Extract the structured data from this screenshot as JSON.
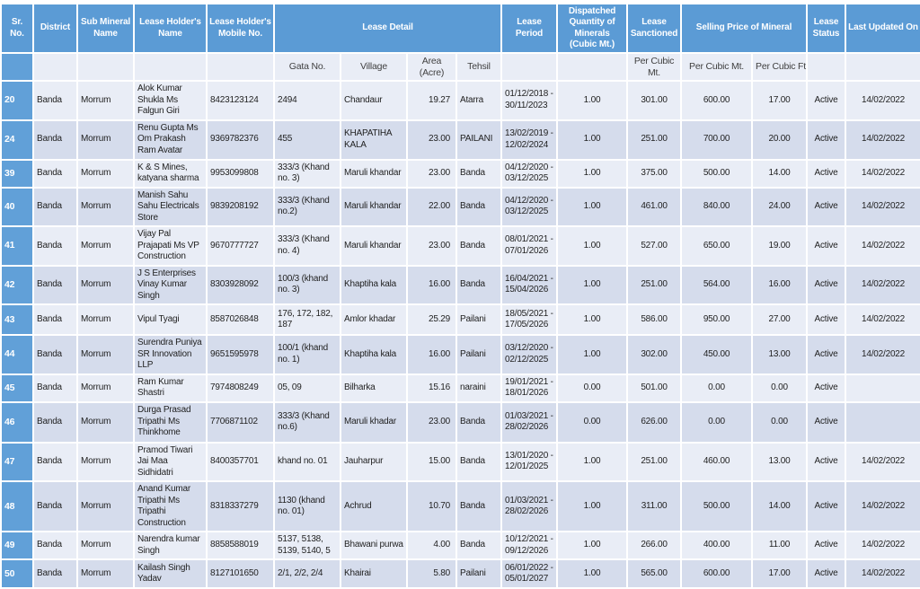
{
  "colors": {
    "header_bg": "#5B9BD5",
    "header_text": "#FFFFFF",
    "subheader_bg": "#D8E1F1",
    "subheader_text": "#404040",
    "row_light": "#E9EDF6",
    "row_dark": "#D5DCEC",
    "srcol_bg": "#61A0D8",
    "body_text": "#1F1F1F"
  },
  "header": {
    "sr_no": "Sr. No.",
    "district": "District",
    "sub_mineral": "Sub Mineral Name",
    "holder_name": "Lease Holder's Name",
    "holder_mobile": "Lease Holder's Mobile No.",
    "lease_detail": "Lease Detail",
    "lease_period": "Lease Period",
    "dispatched": "Dispatched Quantity of Minerals (Cubic Mt.)",
    "sanctioned": "Lease Sanctioned",
    "selling_price": "Selling Price of Mineral",
    "status": "Lease Status",
    "updated": "Last Updated On"
  },
  "subheader": {
    "gata": "Gata No.",
    "village": "Village",
    "area": "Area (Acre)",
    "tehsil": "Tehsil",
    "sanctioned_unit": "Per Cubic Mt.",
    "price_mt": "Per Cubic Mt.",
    "price_ft": "Per Cubic Ft."
  },
  "rows": [
    {
      "sr": "20",
      "district": "Banda",
      "mineral": "Morrum",
      "name": "Alok Kumar Shukla Ms Falgun Giri",
      "mobile": "8423123124",
      "gata": "2494",
      "village": "Chandaur",
      "area": "19.27",
      "tehsil": "Atarra",
      "period": "01/12/2018 -\n30/11/2023",
      "dispatched": "1.00",
      "sanctioned": "301.00",
      "price_mt": "600.00",
      "price_ft": "17.00",
      "status": "Active",
      "updated": "14/02/2022"
    },
    {
      "sr": "24",
      "district": "Banda",
      "mineral": "Morrum",
      "name": "Renu Gupta Ms Om Prakash Ram Avatar",
      "mobile": "9369782376",
      "gata": "455",
      "village": "KHAPATIHA KALA",
      "area": "23.00",
      "tehsil": "PAILANI",
      "period": "13/02/2019 -\n12/02/2024",
      "dispatched": "1.00",
      "sanctioned": "251.00",
      "price_mt": "700.00",
      "price_ft": "20.00",
      "status": "Active",
      "updated": "14/02/2022"
    },
    {
      "sr": "39",
      "district": "Banda",
      "mineral": "Morrum",
      "name": "K & S Mines, katyana sharma",
      "mobile": "9953099808",
      "gata": "333/3 (Khand no. 3)",
      "village": "Maruli khandar",
      "area": "23.00",
      "tehsil": "Banda",
      "period": "04/12/2020 -\n03/12/2025",
      "dispatched": "1.00",
      "sanctioned": "375.00",
      "price_mt": "500.00",
      "price_ft": "14.00",
      "status": "Active",
      "updated": "14/02/2022"
    },
    {
      "sr": "40",
      "district": "Banda",
      "mineral": "Morrum",
      "name": "Manish Sahu Sahu Electricals Store",
      "mobile": "9839208192",
      "gata": "333/3 (Khand no.2)",
      "village": "Maruli khandar",
      "area": "22.00",
      "tehsil": "Banda",
      "period": "04/12/2020 -\n03/12/2025",
      "dispatched": "1.00",
      "sanctioned": "461.00",
      "price_mt": "840.00",
      "price_ft": "24.00",
      "status": "Active",
      "updated": "14/02/2022"
    },
    {
      "sr": "41",
      "district": "Banda",
      "mineral": "Morrum",
      "name": "Vijay Pal Prajapati Ms VP Construction",
      "mobile": "9670777727",
      "gata": "333/3 (Khand no. 4)",
      "village": "Maruli khandar",
      "area": "23.00",
      "tehsil": "Banda",
      "period": "08/01/2021 -\n07/01/2026",
      "dispatched": "1.00",
      "sanctioned": "527.00",
      "price_mt": "650.00",
      "price_ft": "19.00",
      "status": "Active",
      "updated": "14/02/2022"
    },
    {
      "sr": "42",
      "district": "Banda",
      "mineral": "Morrum",
      "name": "J S Enterprises Vinay Kumar Singh",
      "mobile": "8303928092",
      "gata": "100/3 (khand no. 3)",
      "village": "Khaptiha kala",
      "area": "16.00",
      "tehsil": "Banda",
      "period": "16/04/2021 -\n15/04/2026",
      "dispatched": "1.00",
      "sanctioned": "251.00",
      "price_mt": "564.00",
      "price_ft": "16.00",
      "status": "Active",
      "updated": "14/02/2022"
    },
    {
      "sr": "43",
      "district": "Banda",
      "mineral": "Morrum",
      "name": "Vipul Tyagi",
      "mobile": "8587026848",
      "gata": "176, 172, 182, 187",
      "village": "Amlor khadar",
      "area": "25.29",
      "tehsil": "Pailani",
      "period": "18/05/2021 -\n17/05/2026",
      "dispatched": "1.00",
      "sanctioned": "586.00",
      "price_mt": "950.00",
      "price_ft": "27.00",
      "status": "Active",
      "updated": "14/02/2022"
    },
    {
      "sr": "44",
      "district": "Banda",
      "mineral": "Morrum",
      "name": "Surendra Puniya SR Innovation LLP",
      "mobile": "9651595978",
      "gata": "100/1 (khand no. 1)",
      "village": "Khaptiha kala",
      "area": "16.00",
      "tehsil": "Pailani",
      "period": "03/12/2020 -\n02/12/2025",
      "dispatched": "1.00",
      "sanctioned": "302.00",
      "price_mt": "450.00",
      "price_ft": "13.00",
      "status": "Active",
      "updated": "14/02/2022"
    },
    {
      "sr": "45",
      "district": "Banda",
      "mineral": "Morrum",
      "name": "Ram Kumar Shastri",
      "mobile": "7974808249",
      "gata": "05, 09",
      "village": "Bilharka",
      "area": "15.16",
      "tehsil": "naraini",
      "period": "19/01/2021 -\n18/01/2026",
      "dispatched": "0.00",
      "sanctioned": "501.00",
      "price_mt": "0.00",
      "price_ft": "0.00",
      "status": "Active",
      "updated": ""
    },
    {
      "sr": "46",
      "district": "Banda",
      "mineral": "Morrum",
      "name": "Durga Prasad Tripathi Ms Thinkhome",
      "mobile": "7706871102",
      "gata": "333/3 (Khand no.6)",
      "village": "Maruli khadar",
      "area": "23.00",
      "tehsil": "Banda",
      "period": "01/03/2021 -\n28/02/2026",
      "dispatched": "0.00",
      "sanctioned": "626.00",
      "price_mt": "0.00",
      "price_ft": "0.00",
      "status": "Active",
      "updated": ""
    },
    {
      "sr": "47",
      "district": "Banda",
      "mineral": "Morrum",
      "name": "Pramod Tiwari Jai Maa Sidhidatri",
      "mobile": "8400357701",
      "gata": "khand no. 01",
      "village": "Jauharpur",
      "area": "15.00",
      "tehsil": "Banda",
      "period": "13/01/2020 -\n12/01/2025",
      "dispatched": "1.00",
      "sanctioned": "251.00",
      "price_mt": "460.00",
      "price_ft": "13.00",
      "status": "Active",
      "updated": "14/02/2022"
    },
    {
      "sr": "48",
      "district": "Banda",
      "mineral": "Morrum",
      "name": "Anand Kumar Tripathi Ms Tripathi Construction",
      "mobile": "8318337279",
      "gata": "1130 (khand no. 01)",
      "village": "Achrud",
      "area": "10.70",
      "tehsil": "Banda",
      "period": "01/03/2021 -\n28/02/2026",
      "dispatched": "1.00",
      "sanctioned": "311.00",
      "price_mt": "500.00",
      "price_ft": "14.00",
      "status": "Active",
      "updated": "14/02/2022"
    },
    {
      "sr": "49",
      "district": "Banda",
      "mineral": "Morrum",
      "name": "Narendra kumar Singh",
      "mobile": "8858588019",
      "gata": "5137, 5138, 5139, 5140, 5",
      "village": "Bhawani purwa",
      "area": "4.00",
      "tehsil": "Banda",
      "period": "10/12/2021 -\n09/12/2026",
      "dispatched": "1.00",
      "sanctioned": "266.00",
      "price_mt": "400.00",
      "price_ft": "11.00",
      "status": "Active",
      "updated": "14/02/2022"
    },
    {
      "sr": "50",
      "district": "Banda",
      "mineral": "Morrum",
      "name": "Kailash Singh Yadav",
      "mobile": "8127101650",
      "gata": "2/1, 2/2, 2/4",
      "village": "Khairai",
      "area": "5.80",
      "tehsil": "Pailani",
      "period": "06/01/2022 -\n05/01/2027",
      "dispatched": "1.00",
      "sanctioned": "565.00",
      "price_mt": "600.00",
      "price_ft": "17.00",
      "status": "Active",
      "updated": "14/02/2022"
    }
  ]
}
